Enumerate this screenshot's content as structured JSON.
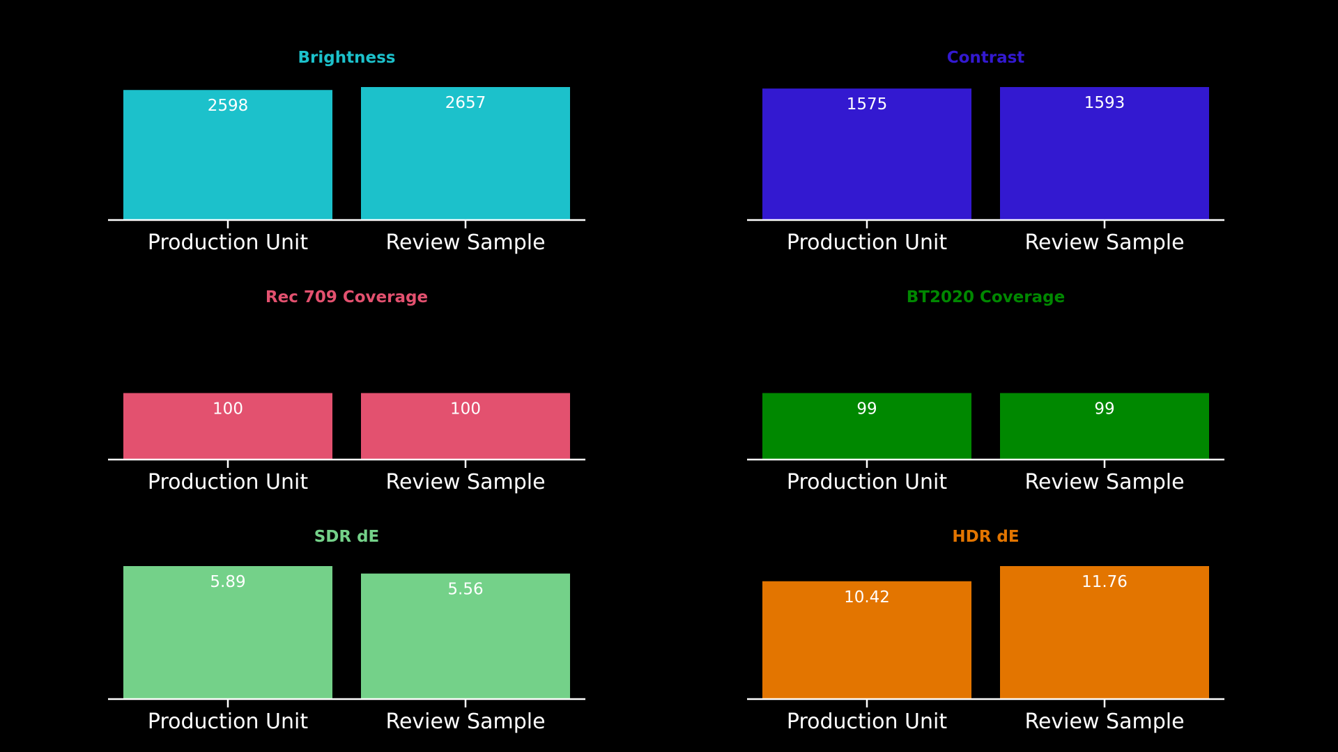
{
  "chart_data": [
    {
      "type": "bar",
      "title": "Brightness",
      "color": "#1cc1cb",
      "categories": [
        "Production Unit",
        "Review Sample"
      ],
      "values": [
        2598,
        2657
      ],
      "value_labels": [
        "2598",
        "2657"
      ],
      "ylim": [
        0,
        2657
      ]
    },
    {
      "type": "bar",
      "title": "Contrast",
      "color": "#3319d0",
      "categories": [
        "Production Unit",
        "Review Sample"
      ],
      "values": [
        1575,
        1593
      ],
      "value_labels": [
        "1575",
        "1593"
      ],
      "ylim": [
        0,
        1593
      ]
    },
    {
      "type": "bar",
      "title": "Rec 709 Coverage",
      "color": "#e3516f",
      "categories": [
        "Production Unit",
        "Review Sample"
      ],
      "values": [
        100,
        100
      ],
      "value_labels": [
        "100",
        "100"
      ],
      "ylim": [
        0,
        200
      ]
    },
    {
      "type": "bar",
      "title": "BT2020 Coverage",
      "color": "#008800",
      "categories": [
        "Production Unit",
        "Review Sample"
      ],
      "values": [
        99,
        99
      ],
      "value_labels": [
        "99",
        "99"
      ],
      "ylim": [
        0,
        198
      ]
    },
    {
      "type": "bar",
      "title": "SDR dE",
      "color": "#74d189",
      "categories": [
        "Production Unit",
        "Review Sample"
      ],
      "values": [
        5.89,
        5.56
      ],
      "value_labels": [
        "5.89",
        "5.56"
      ],
      "ylim": [
        0,
        5.89
      ]
    },
    {
      "type": "bar",
      "title": "HDR dE",
      "color": "#e37500",
      "categories": [
        "Production Unit",
        "Review Sample"
      ],
      "values": [
        10.42,
        11.76
      ],
      "value_labels": [
        "10.42",
        "11.76"
      ],
      "ylim": [
        0,
        11.76
      ]
    }
  ]
}
